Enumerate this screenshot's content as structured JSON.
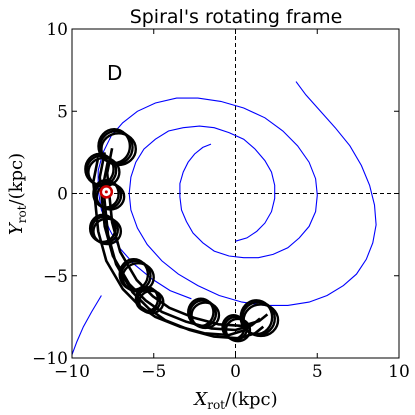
{
  "chart_data": {
    "type": "line",
    "title": "Spiral's rotating frame",
    "panel_label": "D",
    "xlabel": {
      "main": "X",
      "sub": "rot",
      "unit": "/(kpc)"
    },
    "ylabel": {
      "main": "Y",
      "sub": "rot",
      "unit": "/(kpc)"
    },
    "xlim": [
      -10,
      10
    ],
    "ylim": [
      -10,
      10
    ],
    "xticks": [
      -10,
      -5,
      0,
      5,
      10
    ],
    "yticks": [
      -10,
      -5,
      0,
      5,
      10
    ],
    "grid": false,
    "reference_lines": {
      "x": 0,
      "y": 0,
      "style": "dashed"
    },
    "colors": {
      "spiral": "#0000ff",
      "orbit": "#000000",
      "marker_edge": "#cc0000",
      "marker_fill": "#ffffff"
    },
    "series": [
      {
        "role": "spiral_arms",
        "color": "#0000ff",
        "arms": [
          {
            "x": [
              -1.5,
              -2.0,
              -2.5,
              -2.9,
              -3.2,
              -3.4,
              -3.4,
              -3.3,
              -3.0,
              -2.6,
              -2.0,
              -1.3,
              -0.4,
              0.5,
              1.4,
              2.3,
              3.2,
              3.9,
              4.5,
              4.9,
              5.0,
              4.9,
              4.5,
              3.8,
              2.9,
              1.8,
              0.5,
              -0.9,
              -2.3,
              -3.6,
              -4.9,
              -6.0,
              -6.9,
              -7.6,
              -8.1,
              -8.4,
              -8.4,
              -8.2,
              -7.7,
              -7.1,
              -6.2,
              -5.1,
              -4.0,
              -2.7
            ],
            "y": [
              3.0,
              2.8,
              2.4,
              1.9,
              1.3,
              0.6,
              -0.2,
              -1.0,
              -1.7,
              -2.4,
              -3.0,
              -3.5,
              -3.8,
              -3.9,
              -3.9,
              -3.7,
              -3.3,
              -2.7,
              -2.0,
              -1.1,
              -0.1,
              0.9,
              1.9,
              2.9,
              3.8,
              4.6,
              5.2,
              5.6,
              5.8,
              5.8,
              5.5,
              5.0,
              4.3,
              3.5,
              2.5,
              1.4,
              0.2,
              -1.0,
              -2.2,
              -3.3,
              -4.3,
              -5.2,
              -5.9,
              -6.4
            ]
          },
          {
            "x": [
              0.0,
              0.7,
              1.3,
              1.8,
              2.2,
              2.4,
              2.4,
              2.2,
              1.8,
              1.2,
              0.5,
              -0.4,
              -1.3,
              -2.2,
              -3.2,
              -4.1,
              -4.9,
              -5.6,
              -6.1,
              -6.4,
              -6.5,
              -6.4,
              -6.0,
              -5.4,
              -4.5,
              -3.5,
              -2.3,
              -1.0,
              0.4,
              1.8,
              3.2,
              4.5,
              5.6,
              6.6,
              7.4,
              8.0,
              8.4,
              8.6,
              8.5,
              8.2,
              7.7,
              7.0,
              6.1,
              5.2,
              4.3,
              3.7
            ],
            "y": [
              -2.9,
              -2.7,
              -2.3,
              -1.8,
              -1.1,
              -0.3,
              0.5,
              1.3,
              2.0,
              2.7,
              3.3,
              3.7,
              4.0,
              4.1,
              4.0,
              3.8,
              3.3,
              2.7,
              1.9,
              1.0,
              0.0,
              -1.0,
              -2.1,
              -3.1,
              -4.1,
              -4.9,
              -5.6,
              -6.2,
              -6.6,
              -6.8,
              -6.8,
              -6.6,
              -6.2,
              -5.6,
              -4.9,
              -4.0,
              -3.0,
              -1.9,
              -0.7,
              0.5,
              1.7,
              2.9,
              4.0,
              5.0,
              6.0,
              6.8
            ]
          },
          {
            "x": [
              -8.2,
              -8.8,
              -9.3,
              -9.7,
              -10.0
            ],
            "y": [
              -6.2,
              -7.2,
              -8.1,
              -9.0,
              -9.8
            ]
          }
        ]
      },
      {
        "role": "orbit",
        "color": "#000000",
        "guiding_center_path": {
          "x": [
            -8.0,
            -8.3,
            -8.2,
            -8.0,
            -7.5,
            -6.5,
            -5.5,
            -4.5,
            -3.0,
            -1.5,
            0.0,
            1.0,
            1.5
          ],
          "y": [
            2.5,
            1.0,
            0.0,
            -2.0,
            -3.8,
            -5.5,
            -6.5,
            -7.2,
            -7.8,
            -8.2,
            -8.3,
            -8.0,
            -7.6
          ]
        },
        "loops": [
          {
            "cx": -7.3,
            "cy": 2.8,
            "r": 1.0
          },
          {
            "cx": -8.2,
            "cy": 1.4,
            "r": 0.9
          },
          {
            "cx": -7.8,
            "cy": -0.1,
            "r": 0.8
          },
          {
            "cx": -8.0,
            "cy": -2.2,
            "r": 0.8
          },
          {
            "cx": -6.1,
            "cy": -5.0,
            "r": 0.9
          },
          {
            "cx": -5.3,
            "cy": -6.5,
            "r": 0.7
          },
          {
            "cx": -2.0,
            "cy": -7.3,
            "r": 0.8
          },
          {
            "cx": 0.0,
            "cy": -8.2,
            "r": 0.7
          },
          {
            "cx": 1.4,
            "cy": -7.6,
            "r": 1.0
          }
        ]
      },
      {
        "role": "marker",
        "x": [
          -7.9
        ],
        "y": [
          0.1
        ]
      }
    ]
  }
}
